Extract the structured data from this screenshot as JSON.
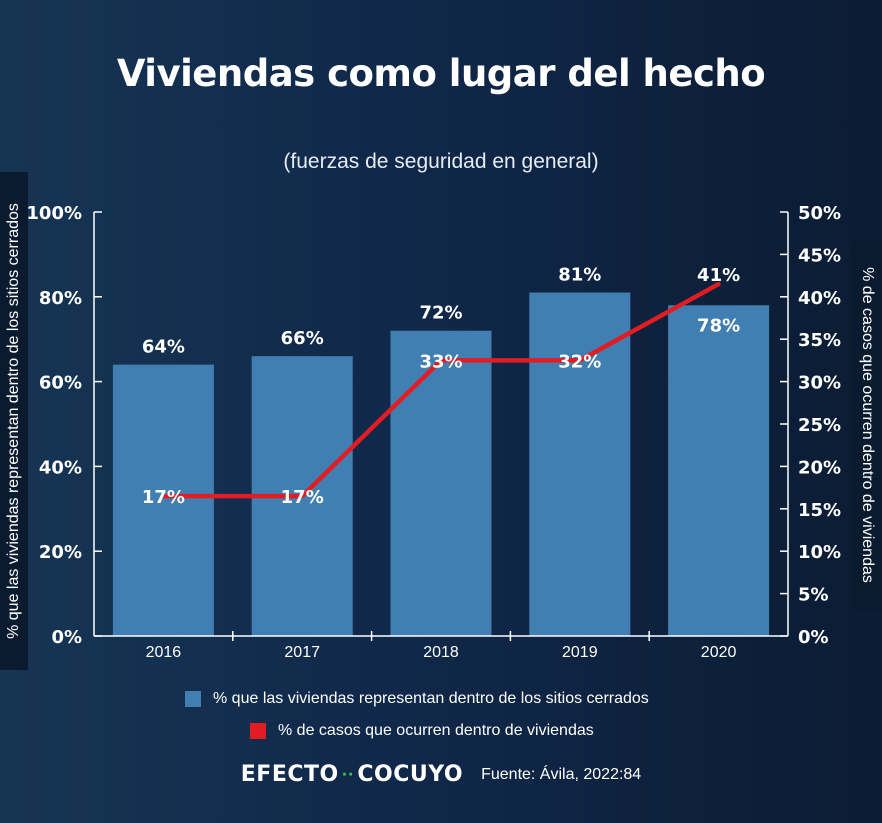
{
  "title": "Viviendas como lugar del hecho",
  "subtitle": "(fuerzas de seguridad en general)",
  "colors": {
    "bar": "#417fb3",
    "line": "#e11d23",
    "axis": "#ffffff"
  },
  "chart_data": {
    "type": "bar",
    "categories": [
      "2016",
      "2017",
      "2018",
      "2019",
      "2020"
    ],
    "series": [
      {
        "name": "% que las viviendas representan dentro de los sitios cerrados",
        "type": "bar",
        "axis": "left",
        "values": [
          64,
          66,
          72,
          81,
          78
        ],
        "labels": [
          "64%",
          "66%",
          "72%",
          "81%",
          "78%"
        ]
      },
      {
        "name": "% de casos que ocurren dentro de viviendas",
        "type": "line",
        "axis": "right",
        "values": [
          16.5,
          16.5,
          32.5,
          32.5,
          41.5
        ],
        "labels": [
          "17%",
          "17%",
          "33%",
          "32%",
          "41%"
        ]
      }
    ],
    "y_left": {
      "label": "% que las viviendas representan dentro de los sitios cerrados",
      "range": [
        0,
        100
      ],
      "ticks": [
        0,
        20,
        40,
        60,
        80,
        100
      ],
      "tick_labels": [
        "0%",
        "20%",
        "40%",
        "60%",
        "80%",
        "100%"
      ]
    },
    "y_right": {
      "label": "% de casos que ocurren dentro de viviendas",
      "range": [
        0,
        50
      ],
      "ticks": [
        0,
        5,
        10,
        15,
        20,
        25,
        30,
        35,
        40,
        45,
        50
      ],
      "tick_labels": [
        "0%",
        "5%",
        "10%",
        "15%",
        "20%",
        "25%",
        "30%",
        "35%",
        "40%",
        "45%",
        "50%"
      ]
    },
    "grid": false,
    "legend_position": "bottom"
  },
  "legend": {
    "bar_label": "% que las viviendas representan dentro de los sitios cerrados",
    "line_label": "% de casos que ocurren dentro de viviendas"
  },
  "footer": {
    "brand_left": "EFECTO",
    "brand_dots": "··",
    "brand_right": "COCUYO",
    "source": "Fuente: Ávila, 2022:84"
  }
}
